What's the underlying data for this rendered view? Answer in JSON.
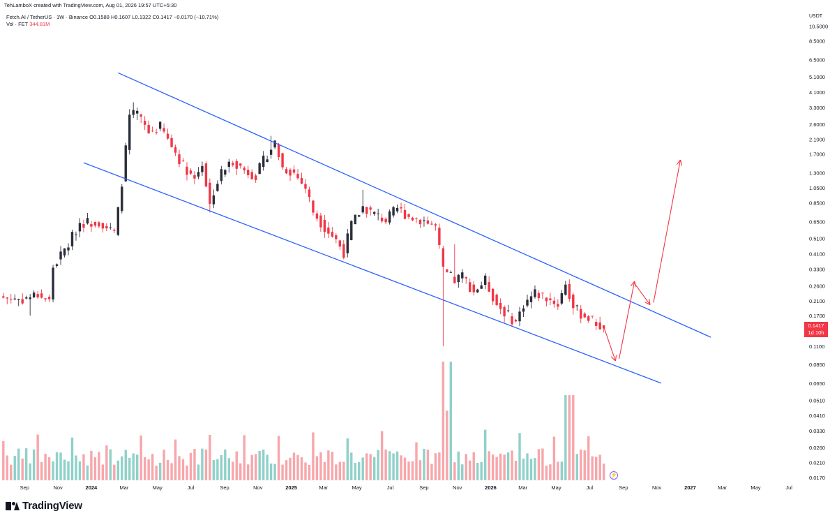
{
  "header": {
    "credit": "TehLamboX created with TradingView.com, Aug 01, 2026 19:57 UTC+5:30"
  },
  "legend": {
    "symbol": "Fetch.AI / TetherUS · 1W · Binance",
    "ohlc": "O0.1588 H0.1607 L0.1322 C0.1417 −0.0170 (−10.71%)",
    "vol_label": "Vol · FET",
    "vol_value": "344.81M"
  },
  "axis": {
    "currency": "USDT"
  },
  "price_tag": {
    "price": "0.1417",
    "countdown": "1d 10h"
  },
  "brand": {
    "name": "TradingView"
  },
  "icons": {
    "replay": "lightning-icon",
    "logo": "tradingview-logo"
  },
  "colors": {
    "up": "#089981",
    "down": "#f23645",
    "vol_up": "#8fd1c9",
    "vol_down": "#f7a6ab",
    "channel": "#2962ff",
    "arrows": "#f23645"
  },
  "chart_data": {
    "type": "candlestick",
    "scale": "log",
    "ylim": [
      0.0163,
      12.0
    ],
    "y_ticks": [
      "10.5000",
      "8.5000",
      "6.5000",
      "5.1000",
      "4.1000",
      "3.3000",
      "2.6000",
      "2.1000",
      "1.7000",
      "1.3000",
      "1.0500",
      "0.8500",
      "0.6500",
      "0.5100",
      "0.4100",
      "0.3300",
      "0.2600",
      "0.2100",
      "0.1700",
      "0.1100",
      "0.0850",
      "0.0650",
      "0.0510",
      "0.0410",
      "0.0330",
      "0.0260",
      "0.0210",
      "0.0170"
    ],
    "y_tick_values": [
      10.5,
      8.5,
      6.5,
      5.1,
      4.1,
      3.3,
      2.6,
      2.1,
      1.7,
      1.3,
      1.05,
      0.85,
      0.65,
      0.51,
      0.41,
      0.33,
      0.26,
      0.21,
      0.17,
      0.11,
      0.085,
      0.065,
      0.051,
      0.041,
      0.033,
      0.026,
      0.021,
      0.017
    ],
    "x_ticks": [
      {
        "label": "Sep",
        "date": "2023-09-01",
        "bold": false
      },
      {
        "label": "Nov",
        "date": "2023-11-01",
        "bold": false
      },
      {
        "label": "2024",
        "date": "2024-01-01",
        "bold": true
      },
      {
        "label": "Mar",
        "date": "2024-03-01",
        "bold": false
      },
      {
        "label": "May",
        "date": "2024-05-01",
        "bold": false
      },
      {
        "label": "Jul",
        "date": "2024-07-01",
        "bold": false
      },
      {
        "label": "Sep",
        "date": "2024-09-01",
        "bold": false
      },
      {
        "label": "Nov",
        "date": "2024-11-01",
        "bold": false
      },
      {
        "label": "2025",
        "date": "2025-01-01",
        "bold": true
      },
      {
        "label": "Mar",
        "date": "2025-03-01",
        "bold": false
      },
      {
        "label": "May",
        "date": "2025-05-01",
        "bold": false
      },
      {
        "label": "Jul",
        "date": "2025-07-01",
        "bold": false
      },
      {
        "label": "Sep",
        "date": "2025-09-01",
        "bold": false
      },
      {
        "label": "Nov",
        "date": "2025-11-01",
        "bold": false
      },
      {
        "label": "2026",
        "date": "2026-01-01",
        "bold": true
      },
      {
        "label": "Mar",
        "date": "2026-03-01",
        "bold": false
      },
      {
        "label": "May",
        "date": "2026-05-01",
        "bold": false
      },
      {
        "label": "Jul",
        "date": "2026-07-01",
        "bold": false
      },
      {
        "label": "Sep",
        "date": "2026-09-01",
        "bold": false
      },
      {
        "label": "Nov",
        "date": "2026-11-01",
        "bold": false
      },
      {
        "label": "2027",
        "date": "2027-01-01",
        "bold": true
      },
      {
        "label": "Mar",
        "date": "2027-03-01",
        "bold": false
      },
      {
        "label": "May",
        "date": "2027-05-01",
        "bold": false
      },
      {
        "label": "Jul",
        "date": "2027-07-01",
        "bold": false
      }
    ],
    "xlim": [
      "2023-07-23",
      "2027-07-25"
    ],
    "volume_max": 460,
    "close_path": [
      [
        "2023-07-24",
        0.22
      ],
      [
        "2023-08-28",
        0.215
      ],
      [
        "2023-09-25",
        0.23
      ],
      [
        "2023-10-16",
        0.21
      ],
      [
        "2023-10-23",
        0.34
      ],
      [
        "2023-11-20",
        0.47
      ],
      [
        "2023-12-11",
        0.64
      ],
      [
        "2024-01-15",
        0.65
      ],
      [
        "2024-02-12",
        0.55
      ],
      [
        "2024-02-19",
        0.75
      ],
      [
        "2024-02-26",
        1.15
      ],
      [
        "2024-03-04",
        1.8
      ],
      [
        "2024-03-11",
        2.9
      ],
      [
        "2024-03-25",
        3.0
      ],
      [
        "2024-04-15",
        2.3
      ],
      [
        "2024-05-06",
        2.5
      ],
      [
        "2024-05-27",
        1.9
      ],
      [
        "2024-06-17",
        1.45
      ],
      [
        "2024-07-08",
        1.2
      ],
      [
        "2024-07-22",
        1.5
      ],
      [
        "2024-08-05",
        0.82
      ],
      [
        "2024-08-12",
        1.0
      ],
      [
        "2024-08-26",
        1.3
      ],
      [
        "2024-09-16",
        1.55
      ],
      [
        "2024-10-07",
        1.35
      ],
      [
        "2024-10-28",
        1.25
      ],
      [
        "2024-11-18",
        1.7
      ],
      [
        "2024-12-02",
        2.0
      ],
      [
        "2024-12-16",
        1.4
      ],
      [
        "2025-01-06",
        1.3
      ],
      [
        "2025-01-27",
        1.05
      ],
      [
        "2025-02-10",
        0.75
      ],
      [
        "2025-03-03",
        0.6
      ],
      [
        "2025-03-24",
        0.5
      ],
      [
        "2025-04-07",
        0.42
      ],
      [
        "2025-04-21",
        0.62
      ],
      [
        "2025-05-12",
        0.8
      ],
      [
        "2025-06-02",
        0.72
      ],
      [
        "2025-06-23",
        0.66
      ],
      [
        "2025-07-14",
        0.78
      ],
      [
        "2025-08-04",
        0.7
      ],
      [
        "2025-09-01",
        0.66
      ],
      [
        "2025-09-22",
        0.6
      ],
      [
        "2025-10-06",
        0.32
      ],
      [
        "2025-10-27",
        0.28
      ],
      [
        "2025-11-10",
        0.3
      ],
      [
        "2025-12-01",
        0.24
      ],
      [
        "2025-12-22",
        0.28
      ],
      [
        "2026-01-12",
        0.2
      ],
      [
        "2026-02-02",
        0.17
      ],
      [
        "2026-02-16",
        0.155
      ],
      [
        "2026-03-02",
        0.2
      ],
      [
        "2026-03-23",
        0.235
      ],
      [
        "2026-04-13",
        0.22
      ],
      [
        "2026-05-04",
        0.2
      ],
      [
        "2026-05-18",
        0.27
      ],
      [
        "2026-06-01",
        0.19
      ],
      [
        "2026-06-15",
        0.175
      ],
      [
        "2026-06-29",
        0.165
      ],
      [
        "2026-07-27",
        0.1417
      ]
    ],
    "notable_wicks": [
      {
        "date": "2023-09-11",
        "low": 0.17
      },
      {
        "date": "2024-03-18",
        "high": 3.55
      },
      {
        "date": "2024-08-05",
        "low": 0.74
      },
      {
        "date": "2024-11-25",
        "high": 2.2
      },
      {
        "date": "2025-05-12",
        "high": 1.02
      },
      {
        "date": "2025-10-06",
        "low": 0.11
      },
      {
        "date": "2025-10-27",
        "high": 0.47
      },
      {
        "date": "2026-02-09",
        "low": 0.145
      },
      {
        "date": "2026-05-25",
        "high": 0.285
      }
    ],
    "channel_lines": [
      {
        "name": "upper",
        "points": [
          [
            "2024-02-19",
            5.4
          ],
          [
            "2027-02-08",
            0.125
          ]
        ]
      },
      {
        "name": "lower",
        "points": [
          [
            "2023-12-18",
            1.5
          ],
          [
            "2026-11-09",
            0.065
          ]
        ]
      }
    ],
    "projection_arrows": [
      [
        [
          "2026-07-27",
          0.145
        ],
        [
          "2026-08-17",
          0.09
        ]
      ],
      [
        [
          "2026-08-24",
          0.092
        ],
        [
          "2026-09-21",
          0.275
        ]
      ],
      [
        [
          "2026-09-21",
          0.27
        ],
        [
          "2026-10-19",
          0.2
        ]
      ],
      [
        [
          "2026-10-26",
          0.205
        ],
        [
          "2026-12-14",
          1.55
        ]
      ]
    ]
  }
}
